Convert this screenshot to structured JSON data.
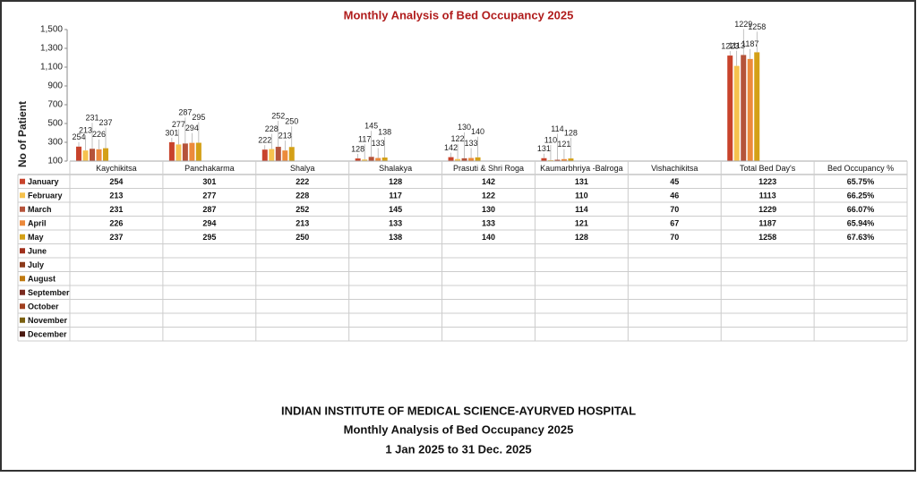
{
  "chart_data": {
    "type": "bar",
    "title": "Monthly Analysis of Bed Occupancy 2025",
    "y_label": "No of Patient",
    "categories": [
      "Kaychikitsa",
      "Panchakarma",
      "Shalya",
      "Shalakya",
      "Prasuti & Shri Roga",
      "Kaumarbhriya -Balroga",
      "Vishachikitsa",
      "Total Bed Day's",
      "Bed Occupancy %"
    ],
    "series": [
      {
        "name": "January",
        "color": "#c8432b",
        "values": [
          254,
          301,
          222,
          128,
          142,
          131,
          45,
          1223,
          65.75
        ],
        "value_labels": [
          null,
          null,
          null,
          null,
          null,
          null,
          null,
          null,
          "65.75%"
        ]
      },
      {
        "name": "February",
        "color": "#f6c24e",
        "values": [
          213,
          277,
          228,
          117,
          122,
          110,
          46,
          1113,
          66.25
        ],
        "value_labels": [
          null,
          null,
          null,
          null,
          null,
          null,
          null,
          null,
          "66.25%"
        ]
      },
      {
        "name": "March",
        "color": "#b5533a",
        "values": [
          231,
          287,
          252,
          145,
          130,
          114,
          70,
          1229,
          66.07
        ],
        "value_labels": [
          null,
          null,
          null,
          null,
          null,
          null,
          null,
          null,
          "66.07%"
        ]
      },
      {
        "name": "April",
        "color": "#ec8a3c",
        "values": [
          226,
          294,
          213,
          133,
          133,
          121,
          67,
          1187,
          65.94
        ],
        "value_labels": [
          null,
          null,
          null,
          null,
          null,
          null,
          null,
          null,
          "65.94%"
        ]
      },
      {
        "name": "May",
        "color": "#d4a017",
        "values": [
          237,
          295,
          250,
          138,
          140,
          128,
          70,
          1258,
          67.63
        ],
        "value_labels": [
          null,
          null,
          null,
          null,
          null,
          null,
          null,
          null,
          "67.63%"
        ]
      },
      {
        "name": "June",
        "color": "#a0301c",
        "values": [
          null,
          null,
          null,
          null,
          null,
          null,
          null,
          null,
          null
        ]
      },
      {
        "name": "July",
        "color": "#8b3a1a",
        "values": [
          null,
          null,
          null,
          null,
          null,
          null,
          null,
          null,
          null
        ]
      },
      {
        "name": "August",
        "color": "#c07a10",
        "values": [
          null,
          null,
          null,
          null,
          null,
          null,
          null,
          null,
          null
        ]
      },
      {
        "name": "September",
        "color": "#7a2a20",
        "values": [
          null,
          null,
          null,
          null,
          null,
          null,
          null,
          null,
          null
        ]
      },
      {
        "name": "October",
        "color": "#a04020",
        "values": [
          null,
          null,
          null,
          null,
          null,
          null,
          null,
          null,
          null
        ]
      },
      {
        "name": "November",
        "color": "#7a6010",
        "values": [
          null,
          null,
          null,
          null,
          null,
          null,
          null,
          null,
          null
        ]
      },
      {
        "name": "December",
        "color": "#4a1a10",
        "values": [
          null,
          null,
          null,
          null,
          null,
          null,
          null,
          null,
          null
        ]
      }
    ],
    "ylim": [
      100,
      1500
    ],
    "yticks": [
      100,
      300,
      500,
      700,
      900,
      {
        "value": 1100,
        "label": "1,100"
      },
      {
        "value": 1300,
        "label": "1,300"
      },
      {
        "value": 1500,
        "label": "1,500"
      }
    ],
    "footer": [
      "INDIAN INSTITUTE OF MEDICAL SCIENCE-AYURVED HOSPITAL",
      "Monthly Analysis  of Bed Occupancy 2025",
      "1 Jan 2025 to 31 Dec. 2025"
    ]
  }
}
